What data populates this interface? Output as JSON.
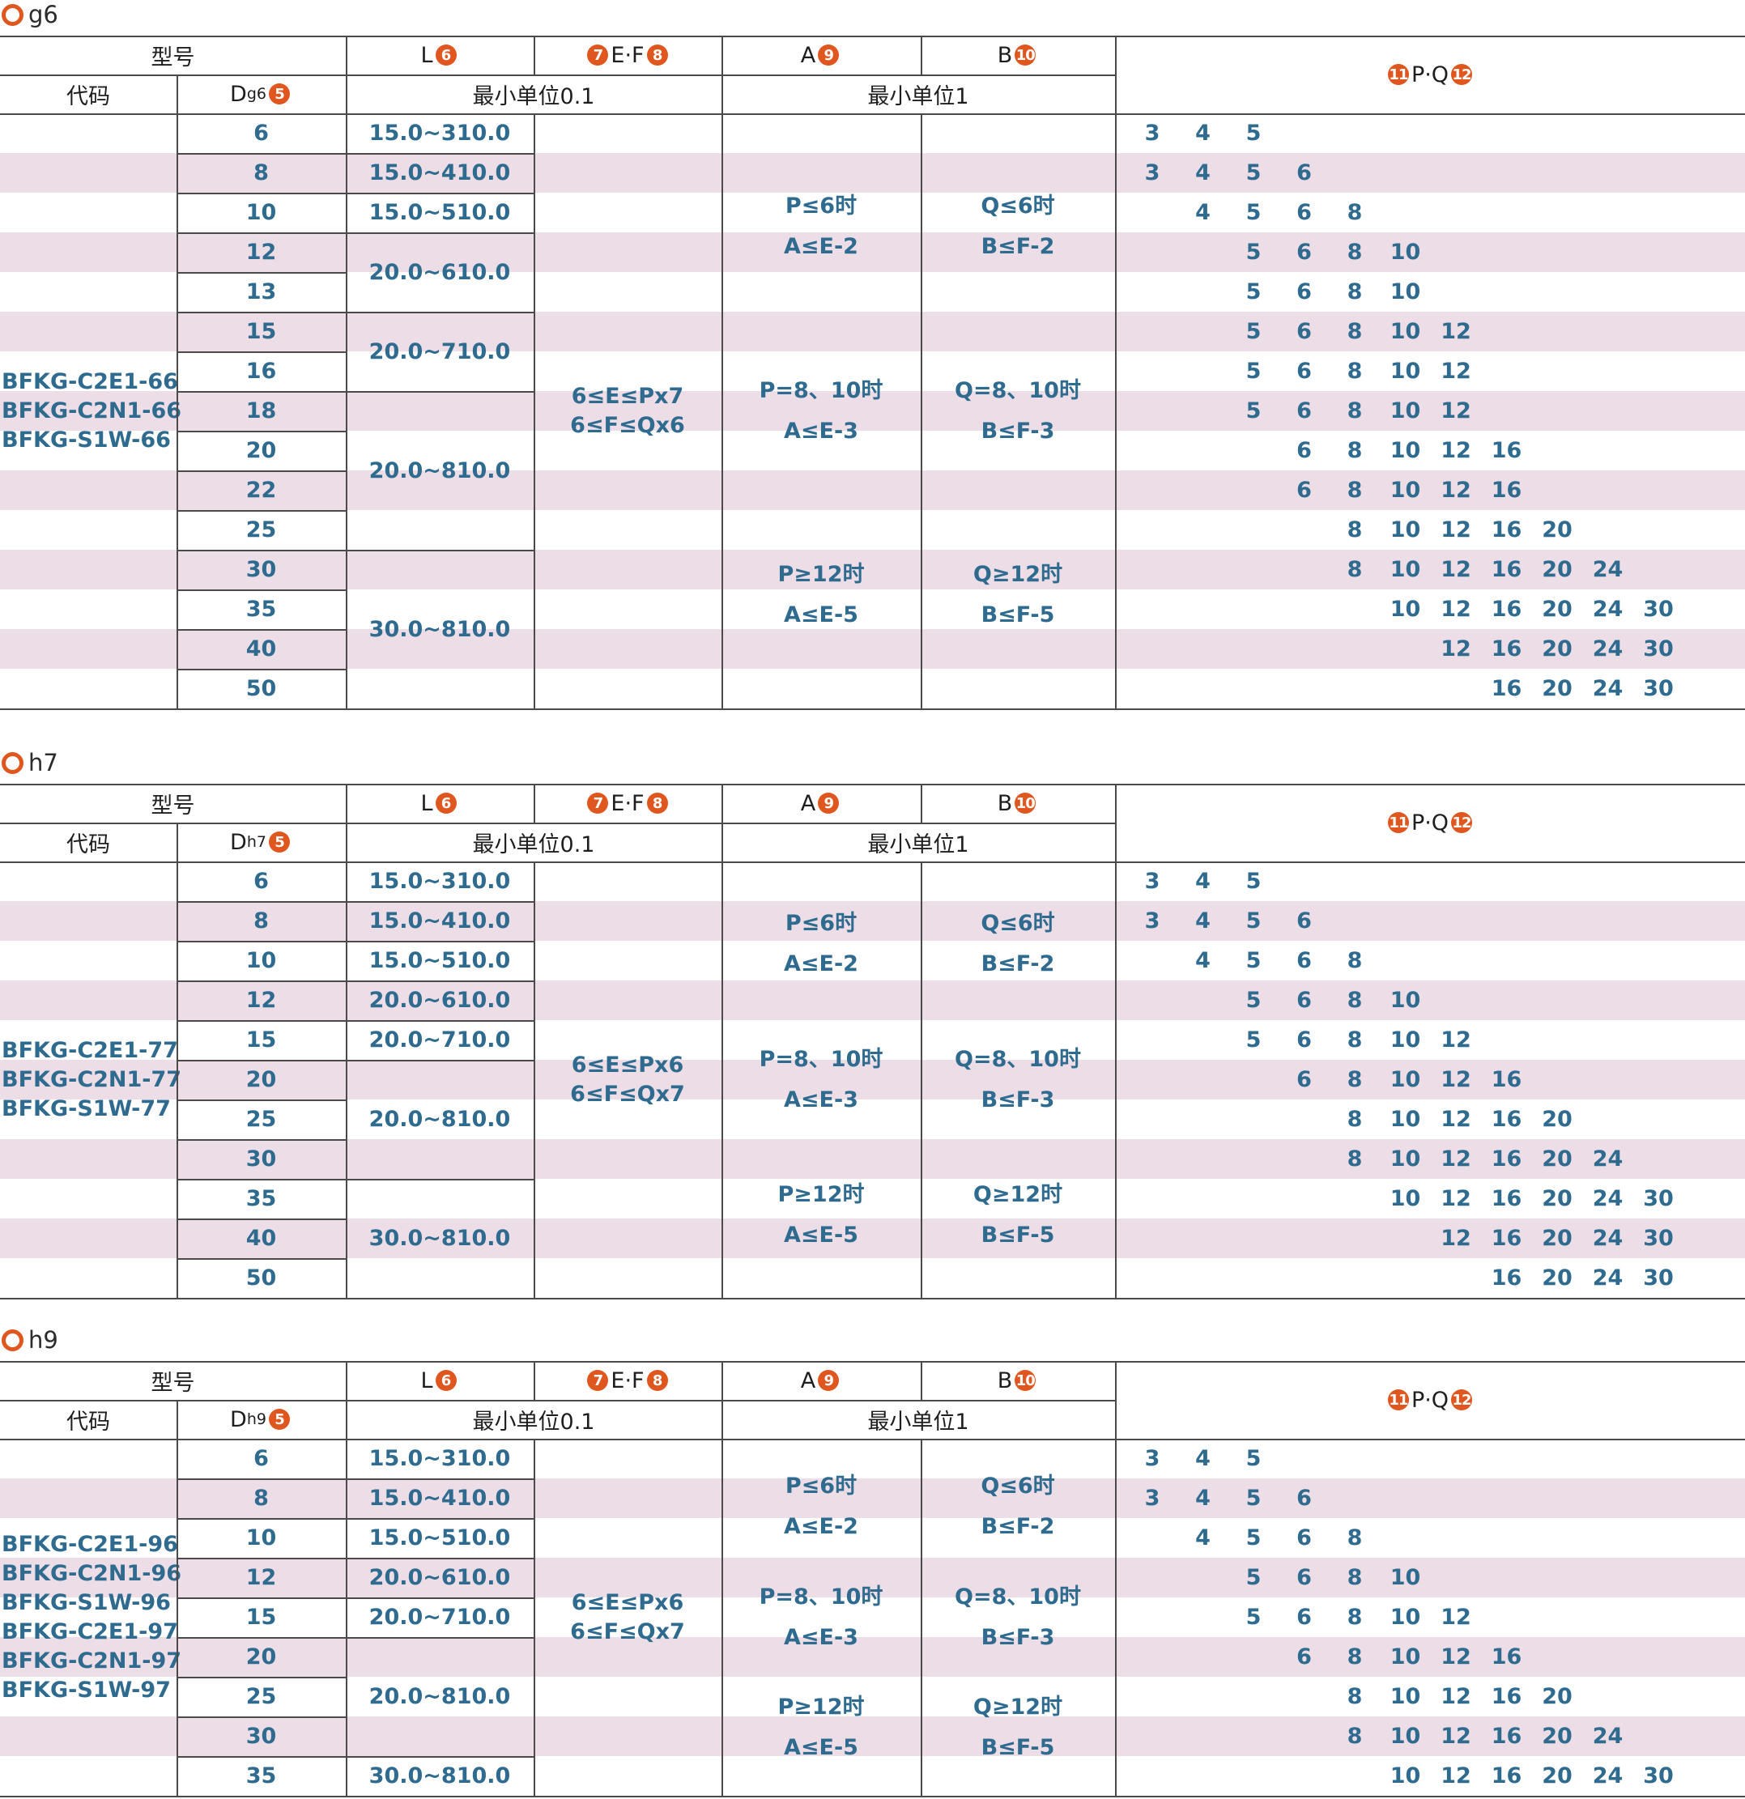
{
  "headers": {
    "model": "型号",
    "code": "代码",
    "d": "D",
    "l": "L",
    "ef": "E·F",
    "a": "A",
    "b": "B",
    "pq": "P·Q",
    "unit_01": "最小单位0.1",
    "unit_1": "最小单位1",
    "badges": {
      "d": "5",
      "l": "6",
      "e": "7",
      "f": "8",
      "a": "9",
      "b": "10",
      "p": "11",
      "q": "12"
    }
  },
  "colors": {
    "accent": "#e0561f",
    "value_text": "#2f6b8f",
    "stripe": "#ecdde6"
  },
  "sections": [
    {
      "title": "g6",
      "d_sub": "g6",
      "models": [
        "BFKG-C2E1-66",
        "BFKG-C2N1-66",
        "BFKG-S1W-66"
      ],
      "ef": [
        "6≤E≤Px7",
        "6≤F≤Qx6"
      ],
      "a_rules": [
        [
          "P≤6时",
          "A≤E-2"
        ],
        [
          "P=8、10时",
          "A≤E-3"
        ],
        [
          "P≥12时",
          "A≤E-5"
        ]
      ],
      "b_rules": [
        [
          "Q≤6时",
          "B≤F-2"
        ],
        [
          "Q=8、10时",
          "B≤F-3"
        ],
        [
          "Q≥12时",
          "B≤F-5"
        ]
      ],
      "rows": [
        {
          "d": "6",
          "pq": [
            "3",
            "4",
            "5"
          ]
        },
        {
          "d": "8",
          "pq": [
            "3",
            "4",
            "5",
            "6"
          ]
        },
        {
          "d": "10",
          "pq": [
            "4",
            "5",
            "6",
            "8"
          ]
        },
        {
          "d": "12",
          "pq": [
            "5",
            "6",
            "8",
            "10"
          ]
        },
        {
          "d": "13",
          "pq": [
            "5",
            "6",
            "8",
            "10"
          ]
        },
        {
          "d": "15",
          "pq": [
            "5",
            "6",
            "8",
            "10",
            "12"
          ]
        },
        {
          "d": "16",
          "pq": [
            "5",
            "6",
            "8",
            "10",
            "12"
          ]
        },
        {
          "d": "18",
          "pq": [
            "5",
            "6",
            "8",
            "10",
            "12"
          ]
        },
        {
          "d": "20",
          "pq": [
            "6",
            "8",
            "10",
            "12",
            "16"
          ]
        },
        {
          "d": "22",
          "pq": [
            "6",
            "8",
            "10",
            "12",
            "16"
          ]
        },
        {
          "d": "25",
          "pq": [
            "8",
            "10",
            "12",
            "16",
            "20"
          ]
        },
        {
          "d": "30",
          "pq": [
            "8",
            "10",
            "12",
            "16",
            "20",
            "24"
          ]
        },
        {
          "d": "35",
          "pq": [
            "10",
            "12",
            "16",
            "20",
            "24",
            "30"
          ]
        },
        {
          "d": "40",
          "pq": [
            "12",
            "16",
            "20",
            "24",
            "30"
          ]
        },
        {
          "d": "50",
          "pq": [
            "16",
            "20",
            "24",
            "30"
          ]
        }
      ],
      "l_groups": [
        {
          "text": "15.0~310.0",
          "start": 0,
          "span": 1
        },
        {
          "text": "15.0~410.0",
          "start": 1,
          "span": 1
        },
        {
          "text": "15.0~510.0",
          "start": 2,
          "span": 1
        },
        {
          "text": "20.0~610.0",
          "start": 3,
          "span": 2
        },
        {
          "text": "20.0~710.0",
          "start": 5,
          "span": 2
        },
        {
          "text": "20.0~810.0",
          "start": 7,
          "span": 4
        },
        {
          "text": "30.0~810.0",
          "start": 11,
          "span": 4
        }
      ]
    },
    {
      "title": "h7",
      "d_sub": "h7",
      "models": [
        "BFKG-C2E1-77",
        "BFKG-C2N1-77",
        "BFKG-S1W-77"
      ],
      "ef": [
        "6≤E≤Px6",
        "6≤F≤Qx7"
      ],
      "a_rules": [
        [
          "P≤6时",
          "A≤E-2"
        ],
        [
          "P=8、10时",
          "A≤E-3"
        ],
        [
          "P≥12时",
          "A≤E-5"
        ]
      ],
      "b_rules": [
        [
          "Q≤6时",
          "B≤F-2"
        ],
        [
          "Q=8、10时",
          "B≤F-3"
        ],
        [
          "Q≥12时",
          "B≤F-5"
        ]
      ],
      "rows": [
        {
          "d": "6",
          "pq": [
            "3",
            "4",
            "5"
          ]
        },
        {
          "d": "8",
          "pq": [
            "3",
            "4",
            "5",
            "6"
          ]
        },
        {
          "d": "10",
          "pq": [
            "4",
            "5",
            "6",
            "8"
          ]
        },
        {
          "d": "12",
          "pq": [
            "5",
            "6",
            "8",
            "10"
          ]
        },
        {
          "d": "15",
          "pq": [
            "5",
            "6",
            "8",
            "10",
            "12"
          ]
        },
        {
          "d": "20",
          "pq": [
            "6",
            "8",
            "10",
            "12",
            "16"
          ]
        },
        {
          "d": "25",
          "pq": [
            "8",
            "10",
            "12",
            "16",
            "20"
          ]
        },
        {
          "d": "30",
          "pq": [
            "8",
            "10",
            "12",
            "16",
            "20",
            "24"
          ]
        },
        {
          "d": "35",
          "pq": [
            "10",
            "12",
            "16",
            "20",
            "24",
            "30"
          ]
        },
        {
          "d": "40",
          "pq": [
            "12",
            "16",
            "20",
            "24",
            "30"
          ]
        },
        {
          "d": "50",
          "pq": [
            "16",
            "20",
            "24",
            "30"
          ]
        }
      ],
      "l_groups": [
        {
          "text": "15.0~310.0",
          "start": 0,
          "span": 1
        },
        {
          "text": "15.0~410.0",
          "start": 1,
          "span": 1
        },
        {
          "text": "15.0~510.0",
          "start": 2,
          "span": 1
        },
        {
          "text": "20.0~610.0",
          "start": 3,
          "span": 1
        },
        {
          "text": "20.0~710.0",
          "start": 4,
          "span": 1
        },
        {
          "text": "20.0~810.0",
          "start": 5,
          "span": 3
        },
        {
          "text": "30.0~810.0",
          "start": 8,
          "span": 3
        }
      ]
    },
    {
      "title": "h9",
      "d_sub": "h9",
      "models": [
        "BFKG-C2E1-96",
        "BFKG-C2N1-96",
        "BFKG-S1W-96",
        "BFKG-C2E1-97",
        "BFKG-C2N1-97",
        "BFKG-S1W-97"
      ],
      "ef": [
        "6≤E≤Px6",
        "6≤F≤Qx7"
      ],
      "a_rules": [
        [
          "P≤6时",
          "A≤E-2"
        ],
        [
          "P=8、10时",
          "A≤E-3"
        ],
        [
          "P≥12时",
          "A≤E-5"
        ]
      ],
      "b_rules": [
        [
          "Q≤6时",
          "B≤F-2"
        ],
        [
          "Q=8、10时",
          "B≤F-3"
        ],
        [
          "Q≥12时",
          "B≤F-5"
        ]
      ],
      "rows": [
        {
          "d": "6",
          "pq": [
            "3",
            "4",
            "5"
          ]
        },
        {
          "d": "8",
          "pq": [
            "3",
            "4",
            "5",
            "6"
          ]
        },
        {
          "d": "10",
          "pq": [
            "4",
            "5",
            "6",
            "8"
          ]
        },
        {
          "d": "12",
          "pq": [
            "5",
            "6",
            "8",
            "10"
          ]
        },
        {
          "d": "15",
          "pq": [
            "5",
            "6",
            "8",
            "10",
            "12"
          ]
        },
        {
          "d": "20",
          "pq": [
            "6",
            "8",
            "10",
            "12",
            "16"
          ]
        },
        {
          "d": "25",
          "pq": [
            "8",
            "10",
            "12",
            "16",
            "20"
          ]
        },
        {
          "d": "30",
          "pq": [
            "8",
            "10",
            "12",
            "16",
            "20",
            "24"
          ]
        },
        {
          "d": "35",
          "pq": [
            "10",
            "12",
            "16",
            "20",
            "24",
            "30"
          ]
        }
      ],
      "l_groups": [
        {
          "text": "15.0~310.0",
          "start": 0,
          "span": 1
        },
        {
          "text": "15.0~410.0",
          "start": 1,
          "span": 1
        },
        {
          "text": "15.0~510.0",
          "start": 2,
          "span": 1
        },
        {
          "text": "20.0~610.0",
          "start": 3,
          "span": 1
        },
        {
          "text": "20.0~710.0",
          "start": 4,
          "span": 1
        },
        {
          "text": "20.0~810.0",
          "start": 5,
          "span": 3
        },
        {
          "text": "30.0~810.0",
          "start": 8,
          "span": 1
        }
      ]
    }
  ]
}
